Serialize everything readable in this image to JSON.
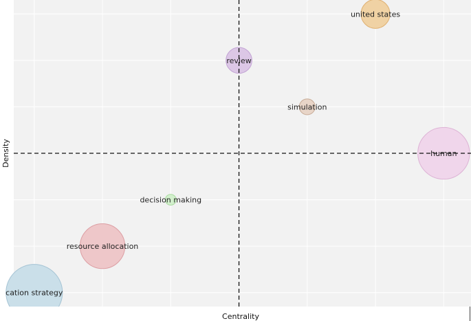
{
  "chart_data": {
    "type": "scatter",
    "xlabel": "Centrality",
    "ylabel": "Density",
    "xlim": [
      0,
      6.7
    ],
    "ylim": [
      0,
      6.6
    ],
    "grid": true,
    "quadrant_lines": {
      "x": 3.3,
      "y": 3.3
    },
    "points": [
      {
        "label": "united states",
        "x": 5.3,
        "y": 6.3,
        "size": 0.5,
        "color": "#f0d2a4",
        "stroke": "#dfb071"
      },
      {
        "label": "review",
        "x": 3.3,
        "y": 5.3,
        "size": 0.4,
        "color": "#dcc7e6",
        "stroke": "#c2a3d4"
      },
      {
        "label": "simulation",
        "x": 4.3,
        "y": 4.3,
        "size": 0.15,
        "color": "#e8d5c8",
        "stroke": "#c7ab96"
      },
      {
        "label": "human",
        "x": 6.3,
        "y": 3.3,
        "size": 1.6,
        "color": "#f0d6eb",
        "stroke": "#ddb3d5"
      },
      {
        "label": "decision making",
        "x": 2.3,
        "y": 2.3,
        "size": 0.07,
        "color": "#d2efcc",
        "stroke": "#a9db9f"
      },
      {
        "label": "resource allocation",
        "x": 1.3,
        "y": 1.3,
        "size": 1.2,
        "color": "#eec7c9",
        "stroke": "#dc9ea3"
      },
      {
        "label": "cation strategy",
        "x": 0.3,
        "y": 0.3,
        "size": 1.9,
        "color": "#cadfe9",
        "stroke": "#a4c3d4"
      }
    ]
  }
}
